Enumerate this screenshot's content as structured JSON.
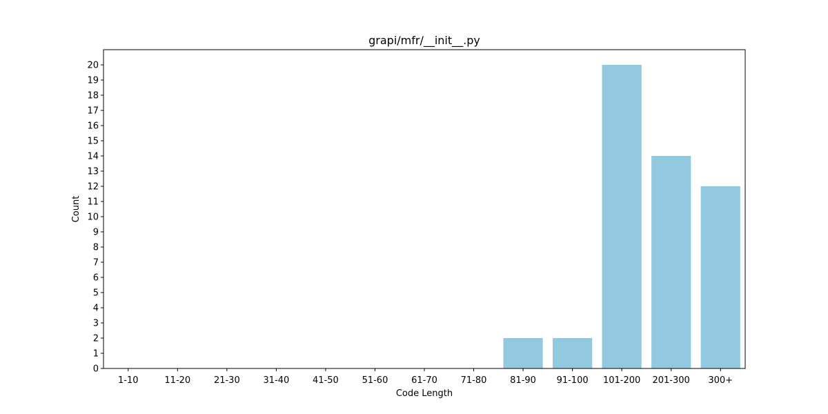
{
  "chart_data": {
    "type": "bar",
    "title": "grapi/mfr/__init__.py",
    "xlabel": "Code Length",
    "ylabel": "Count",
    "categories": [
      "1-10",
      "11-20",
      "21-30",
      "31-40",
      "41-50",
      "51-60",
      "61-70",
      "71-80",
      "81-90",
      "91-100",
      "101-200",
      "201-300",
      "300+"
    ],
    "values": [
      0,
      0,
      0,
      0,
      0,
      0,
      0,
      0,
      2,
      2,
      20,
      14,
      12
    ],
    "ylim": [
      0,
      21
    ],
    "yticks": [
      0,
      1,
      2,
      3,
      4,
      5,
      6,
      7,
      8,
      9,
      10,
      11,
      12,
      13,
      14,
      15,
      16,
      17,
      18,
      19,
      20
    ],
    "bar_color": "#92c9de",
    "grid": false,
    "legend": "none"
  }
}
